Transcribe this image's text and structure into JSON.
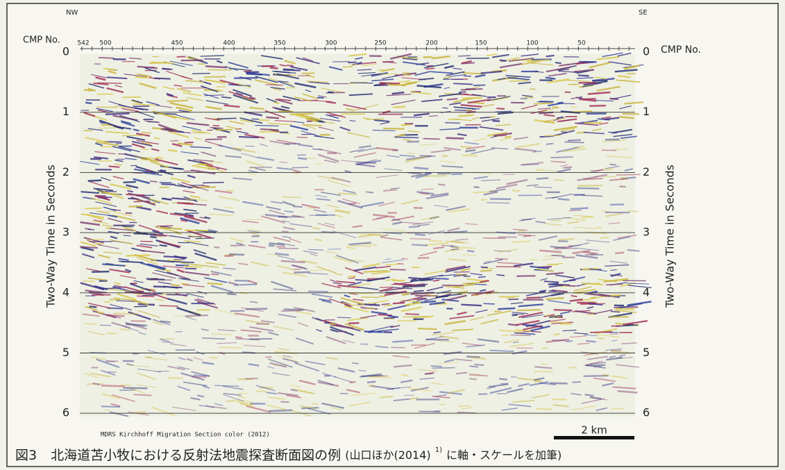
{
  "figure": {
    "top_left_direction": "NW",
    "top_right_direction": "SE",
    "left_cmp_label": "CMP No.",
    "right_cmp_label": "CMP No.",
    "cmp_ticks": [
      "542",
      "500",
      "450",
      "400",
      "350",
      "300",
      "250",
      "200",
      "150",
      "100",
      "50"
    ],
    "left_time_ticks": [
      "0",
      "1",
      "2",
      "3",
      "4",
      "5",
      "6"
    ],
    "right_time_ticks": [
      "0",
      "1",
      "2",
      "3",
      "4",
      "5",
      "6"
    ],
    "left_axis_title": "Two-Way Time in Seconds",
    "right_axis_title": "Two-Way Time in Seconds",
    "section_note": "MDRS Kirchhoff Migration Section color (2012)",
    "scale_label": "2 km"
  },
  "caption": {
    "label": "図3",
    "text": "北海道苫小牧における反射法地震探査断面図の例",
    "note_before": "(山口ほか(2014)",
    "superscript": "1)",
    "note_after": "に軸・スケールを加筆)"
  }
}
